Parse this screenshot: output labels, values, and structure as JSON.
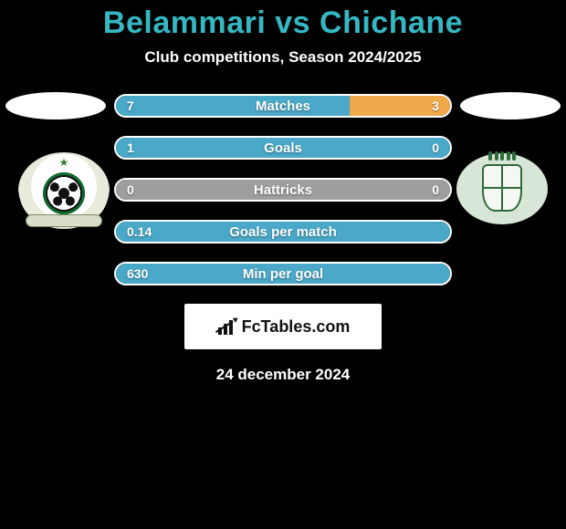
{
  "header": {
    "title_left": "Belammari",
    "title_vs": "vs",
    "title_right": "Chichane",
    "title_color": "#35b8c3",
    "subtitle": "Club competitions, Season 2024/2025"
  },
  "colors": {
    "left_bar": "#4aa8c8",
    "right_bar": "#f0a94a",
    "neutral_bar": "#9e9e9e",
    "border": "#ffffff"
  },
  "comparison": {
    "rows": [
      {
        "label": "Matches",
        "left": "7",
        "right": "3",
        "left_pct": 70,
        "right_pct": 30
      },
      {
        "label": "Goals",
        "left": "1",
        "right": "0",
        "left_pct": 100,
        "right_pct": 0,
        "right_neutral": true
      },
      {
        "label": "Hattricks",
        "left": "0",
        "right": "0",
        "left_pct": 50,
        "right_pct": 50,
        "left_neutral": true,
        "right_neutral": true
      },
      {
        "label": "Goals per match",
        "left": "0.14",
        "right": "",
        "left_pct": 100,
        "right_pct": 0
      },
      {
        "label": "Min per goal",
        "left": "630",
        "right": "",
        "left_pct": 100,
        "right_pct": 0
      }
    ]
  },
  "footer": {
    "logo_text": "FcTables.com",
    "date": "24 december 2024"
  }
}
